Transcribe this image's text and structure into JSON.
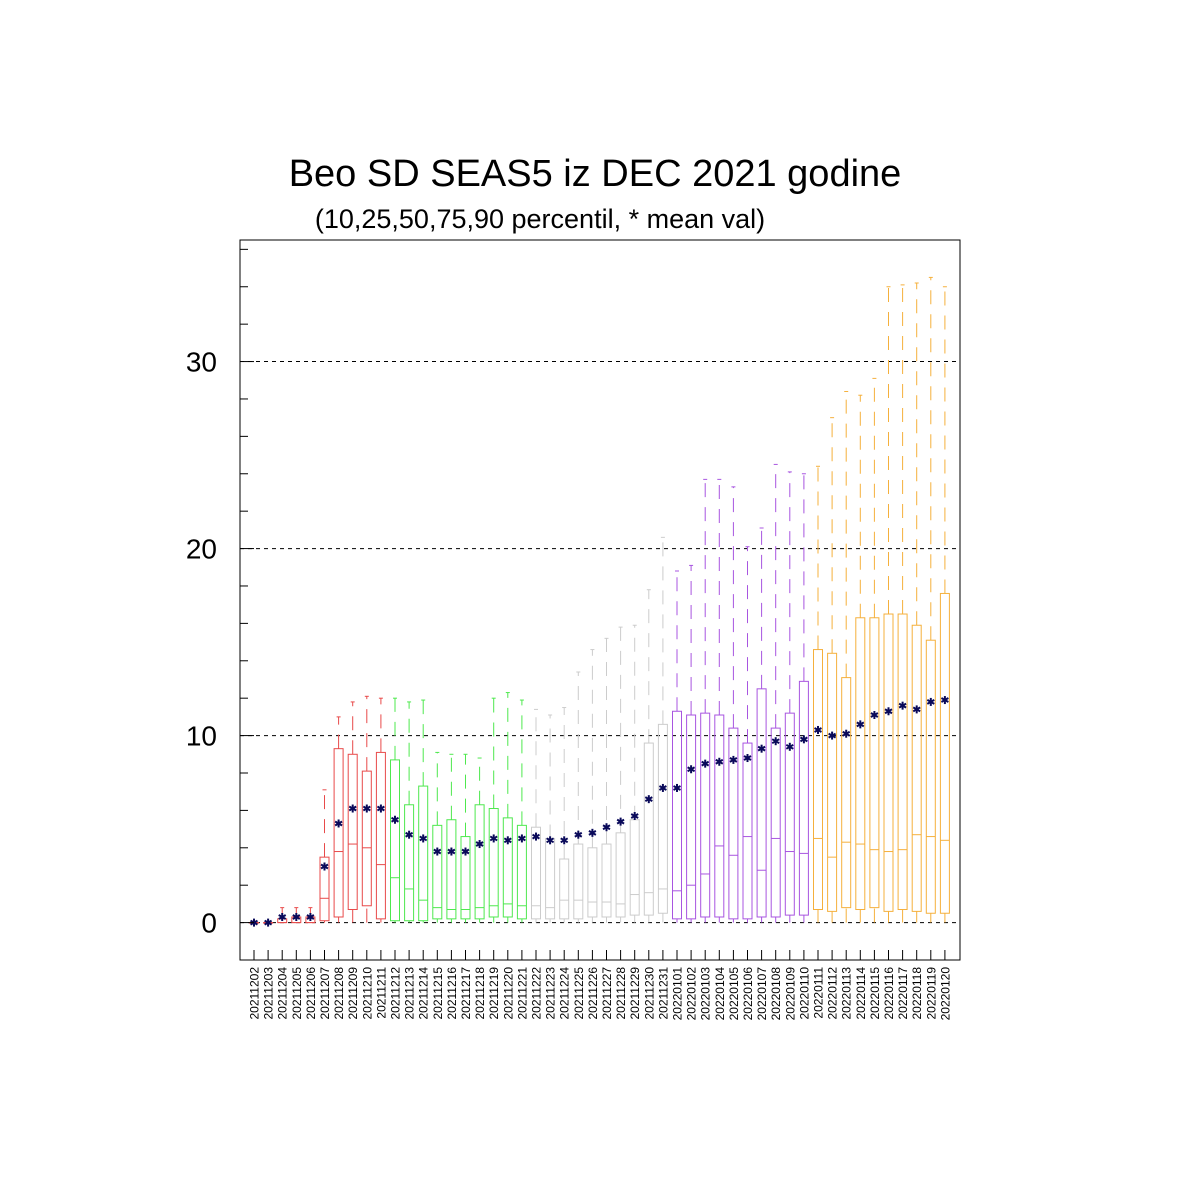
{
  "chart_data": {
    "type": "boxplot",
    "title": "Beo SD SEAS5 iz DEC 2021 godine",
    "subtitle": "(10,25,50,75,90 percentil, * mean val)",
    "ylim": [
      -2,
      36.5
    ],
    "yticks": [
      0,
      10,
      20,
      30
    ],
    "grid": "dashed horizontal at 0, 10, 20, 30",
    "colors": {
      "red": "#e84a4a",
      "green": "#4ee84e",
      "gray": "#cccccc",
      "purple": "#a855e0",
      "orange": "#f5b03c",
      "mean": "#0a0a5a"
    },
    "categories": [
      "20211202",
      "20211203",
      "20211204",
      "20211205",
      "20211206",
      "20211207",
      "20211208",
      "20211209",
      "20211210",
      "20211211",
      "20211212",
      "20211213",
      "20211214",
      "20211215",
      "20211216",
      "20211217",
      "20211218",
      "20211219",
      "20211220",
      "20211221",
      "20211222",
      "20211223",
      "20211224",
      "20211225",
      "20211226",
      "20211227",
      "20211228",
      "20211229",
      "20211230",
      "20211231",
      "20220101",
      "20220102",
      "20220103",
      "20220104",
      "20220105",
      "20220106",
      "20220107",
      "20220108",
      "20220109",
      "20220110",
      "20220111",
      "20220112",
      "20220113",
      "20220114",
      "20220115",
      "20220116",
      "20220117",
      "20220118",
      "20220119",
      "20220120"
    ],
    "groups": [
      "red",
      "red",
      "red",
      "red",
      "red",
      "red",
      "red",
      "red",
      "red",
      "red",
      "green",
      "green",
      "green",
      "green",
      "green",
      "green",
      "green",
      "green",
      "green",
      "green",
      "gray",
      "gray",
      "gray",
      "gray",
      "gray",
      "gray",
      "gray",
      "gray",
      "gray",
      "gray",
      "purple",
      "purple",
      "purple",
      "purple",
      "purple",
      "purple",
      "purple",
      "purple",
      "purple",
      "purple",
      "orange",
      "orange",
      "orange",
      "orange",
      "orange",
      "orange",
      "orange",
      "orange",
      "orange",
      "orange"
    ],
    "p10": [
      0,
      0,
      0,
      0,
      0,
      0,
      0,
      0,
      0,
      0,
      0,
      0,
      0,
      0,
      0,
      0,
      0,
      0,
      0,
      0,
      0,
      0,
      0,
      0,
      0,
      0,
      0,
      0,
      0,
      0,
      0,
      0,
      0,
      0,
      0,
      0,
      0,
      0,
      0,
      0,
      0,
      0,
      0,
      0,
      0,
      0,
      0,
      0,
      0,
      0
    ],
    "p25": [
      0,
      0,
      0,
      0,
      0,
      0.1,
      0.3,
      0.7,
      0.9,
      0.2,
      0.1,
      0.1,
      0.1,
      0.2,
      0.2,
      0.2,
      0.2,
      0.3,
      0.3,
      0.2,
      0.2,
      0.2,
      0.2,
      0.2,
      0.3,
      0.3,
      0.3,
      0.4,
      0.4,
      0.5,
      0.2,
      0.2,
      0.3,
      0.3,
      0.2,
      0.2,
      0.3,
      0.3,
      0.4,
      0.4,
      0.7,
      0.6,
      0.8,
      0.7,
      0.8,
      0.6,
      0.7,
      0.6,
      0.5,
      0.5
    ],
    "p50": [
      0,
      0,
      0,
      0,
      0,
      1.3,
      3.8,
      4.2,
      4.0,
      3.1,
      2.4,
      1.8,
      1.2,
      0.8,
      0.7,
      0.7,
      0.8,
      0.9,
      1.0,
      0.9,
      0.9,
      0.8,
      1.2,
      1.2,
      1.1,
      1.1,
      1.0,
      1.5,
      1.6,
      1.8,
      1.7,
      2.0,
      2.6,
      4.1,
      3.6,
      4.6,
      2.8,
      4.5,
      3.8,
      3.7,
      4.5,
      3.5,
      4.3,
      4.2,
      3.9,
      3.8,
      3.9,
      4.7,
      4.6,
      4.4
    ],
    "p75": [
      0,
      0,
      0.2,
      0.3,
      0.3,
      3.5,
      9.3,
      9.0,
      8.1,
      9.1,
      8.7,
      6.3,
      7.3,
      5.2,
      5.5,
      4.6,
      6.3,
      6.1,
      5.6,
      5.2,
      5.1,
      4.5,
      3.4,
      4.2,
      4.0,
      4.2,
      4.8,
      5.5,
      9.6,
      10.6,
      11.3,
      11.1,
      11.2,
      11.1,
      10.4,
      9.6,
      12.5,
      10.4,
      11.2,
      12.9,
      14.6,
      14.4,
      13.1,
      16.3,
      16.3,
      16.5,
      16.5,
      15.9,
      15.1,
      17.6
    ],
    "p90": [
      0,
      0,
      0.8,
      0.8,
      0.8,
      7.1,
      11.0,
      11.8,
      12.1,
      12.0,
      12.0,
      11.8,
      11.9,
      9.1,
      9.0,
      9.0,
      8.8,
      12.0,
      12.3,
      11.9,
      11.4,
      11.1,
      11.5,
      13.4,
      14.6,
      15.2,
      15.8,
      15.9,
      17.8,
      20.6,
      18.8,
      19.1,
      23.7,
      23.7,
      23.3,
      20.1,
      21.1,
      24.5,
      24.1,
      24.0,
      24.4,
      27.0,
      28.4,
      28.2,
      29.1,
      34.0,
      34.1,
      34.2,
      34.5,
      34.0
    ],
    "mean": [
      0,
      0,
      0.3,
      0.3,
      0.3,
      3.0,
      5.3,
      6.1,
      6.1,
      6.1,
      5.5,
      4.7,
      4.5,
      3.8,
      3.8,
      3.8,
      4.2,
      4.5,
      4.4,
      4.5,
      4.6,
      4.4,
      4.4,
      4.7,
      4.8,
      5.1,
      5.4,
      5.7,
      6.6,
      7.2,
      7.2,
      8.2,
      8.5,
      8.6,
      8.7,
      8.8,
      9.3,
      9.7,
      9.4,
      9.8,
      10.3,
      10.0,
      10.1,
      10.6,
      11.1,
      11.3,
      11.6,
      11.4,
      11.8,
      11.9
    ]
  }
}
